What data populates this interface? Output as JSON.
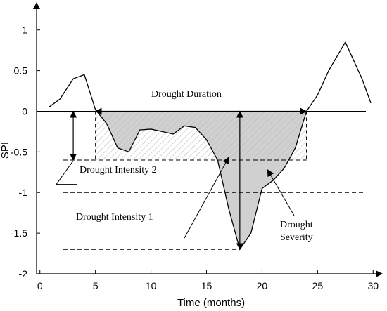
{
  "chart_data": {
    "type": "line",
    "xlabel": "Time (months)",
    "ylabel": "SPI",
    "xlim": [
      -0.3,
      30.3
    ],
    "ylim": [
      -2,
      1.3
    ],
    "xticks": [
      0,
      5,
      10,
      15,
      20,
      25,
      30
    ],
    "yticks": [
      -2,
      -1.5,
      -1,
      -0.5,
      0,
      0.5,
      1
    ],
    "grid": false,
    "series": [
      {
        "values_x": [
          0.8,
          1.8,
          3.0,
          4.0,
          5.0,
          6.0,
          7.0,
          8.0,
          9.0,
          10.0,
          11.0,
          12.0,
          13.0,
          14.0,
          15.0,
          16.0,
          17.0,
          18.0,
          19.0,
          20.0,
          21.0,
          22.0,
          23.0,
          24.0,
          25.0,
          26.0,
          27.5,
          29.0,
          29.8
        ],
        "values_y": [
          0.05,
          0.15,
          0.4,
          0.45,
          0.02,
          -0.15,
          -0.45,
          -0.5,
          -0.23,
          -0.22,
          -0.25,
          -0.28,
          -0.18,
          -0.2,
          -0.35,
          -0.6,
          -1.2,
          -1.7,
          -1.5,
          -0.95,
          -0.85,
          -0.7,
          -0.45,
          0.0,
          0.2,
          0.5,
          0.85,
          0.4,
          0.1
        ]
      }
    ],
    "reference_lines": [
      {
        "axis": "y",
        "value": 0,
        "style": "solid"
      },
      {
        "axis": "y",
        "value": -0.6,
        "style": "dashed"
      },
      {
        "axis": "y",
        "value": -1,
        "style": "dashed"
      },
      {
        "axis": "y",
        "value": -1.7,
        "style": "dashed"
      }
    ],
    "shaded_regions": [
      {
        "x_start": 5,
        "x_end": 24,
        "fill": "hatched",
        "bounds": "between 0 and -0.6"
      },
      {
        "x_start": 5,
        "x_end": 24,
        "fill": "gray",
        "bounds": "between 0 and curve"
      }
    ],
    "annotations": [
      {
        "id": "duration",
        "text": "Drought Duration"
      },
      {
        "id": "intensity2",
        "text": "Drought Intensity 2"
      },
      {
        "id": "intensity1",
        "text": "Drought Intensity 1"
      },
      {
        "id": "severity_line1",
        "text": "Drought"
      },
      {
        "id": "severity_line2",
        "text": "Severity"
      }
    ],
    "colors": {
      "line": "#000000",
      "shade": "#c8c8c8",
      "hatch": "#bdbdbd"
    }
  }
}
